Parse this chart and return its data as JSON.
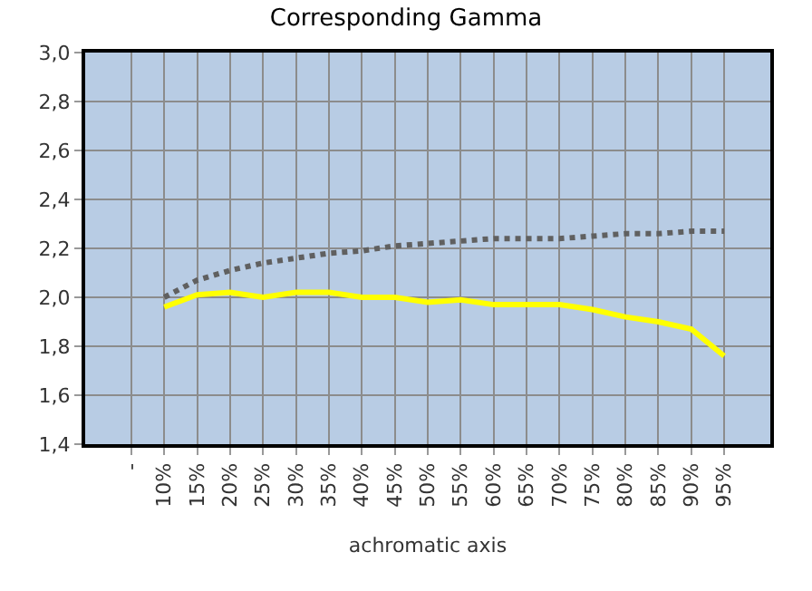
{
  "chart_data": {
    "type": "line",
    "title": "Corresponding Gamma",
    "xlabel": "achromatic axis",
    "categories": [
      "-",
      "10%",
      "15%",
      "20%",
      "25%",
      "30%",
      "35%",
      "40%",
      "45%",
      "50%",
      "55%",
      "60%",
      "65%",
      "70%",
      "75%",
      "80%",
      "85%",
      "90%",
      "95%"
    ],
    "series": [
      {
        "color": "#606060",
        "line_style": "dotted",
        "values": [
          null,
          2.0,
          2.07,
          2.11,
          2.14,
          2.16,
          2.18,
          2.19,
          2.21,
          2.22,
          2.23,
          2.24,
          2.24,
          2.24,
          2.25,
          2.26,
          2.26,
          2.27,
          2.27
        ]
      },
      {
        "color": "#ffff00",
        "line_style": "solid",
        "values": [
          null,
          1.96,
          2.01,
          2.02,
          2.0,
          2.02,
          2.02,
          2.0,
          2.0,
          1.98,
          1.99,
          1.97,
          1.97,
          1.97,
          1.95,
          1.92,
          1.9,
          1.87,
          1.76
        ]
      }
    ],
    "ylim": [
      1.4,
      3.0
    ],
    "yticks": [
      {
        "value": 1.4,
        "label": "1,4"
      },
      {
        "value": 1.6,
        "label": "1,6"
      },
      {
        "value": 1.8,
        "label": "1,8"
      },
      {
        "value": 2.0,
        "label": "2,0"
      },
      {
        "value": 2.2,
        "label": "2,2"
      },
      {
        "value": 2.4,
        "label": "2,4"
      },
      {
        "value": 2.6,
        "label": "2,6"
      },
      {
        "value": 2.8,
        "label": "2,8"
      },
      {
        "value": 3.0,
        "label": "3,0"
      }
    ],
    "grid": true,
    "marker": "none"
  }
}
